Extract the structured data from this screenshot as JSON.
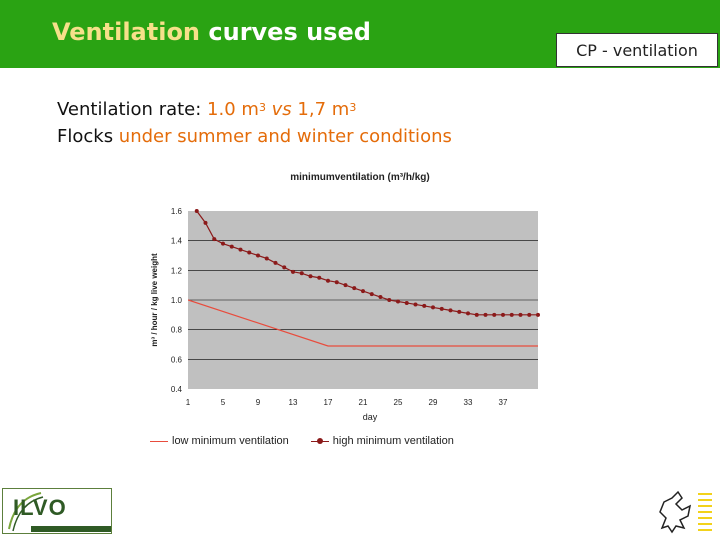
{
  "header": {
    "title_part1": "Ventilation",
    "title_part2": " curves used",
    "section": "CP - ventilation"
  },
  "body": {
    "line1_label": "Ventilation rate: ",
    "line1_value_a": "1.0 m",
    "line1_exp_a": "3",
    "line1_vs": " vs ",
    "line1_value_b": " 1,7 m",
    "line1_exp_b": "3",
    "line2_part1": "Flocks",
    "line2_part2": " under summer and winter conditions"
  },
  "logo": {
    "text": "ILVO"
  },
  "colors": {
    "header_green": "#2aa313",
    "title_yellow": "#f6e08a",
    "accent_orange": "#e46c0a",
    "plot_bg": "#c0c0c0",
    "low_series": "#e84c3d",
    "high_series": "#8b1a1a"
  },
  "chart_data": {
    "type": "line",
    "title": "minimumventilation (m³/h/kg)",
    "xlabel": "day",
    "ylabel": "m³ / hour / kg live weight",
    "ylim": [
      0.4,
      1.6
    ],
    "yticks": [
      "0.4",
      "0.6",
      "0.8",
      "1.0",
      "1.2",
      "1.4",
      "1.6"
    ],
    "xticks": [
      "1",
      "5",
      "9",
      "13",
      "17",
      "21",
      "25",
      "29",
      "33",
      "37"
    ],
    "xlim": [
      1,
      41
    ],
    "grid": true,
    "legend_position": "bottom",
    "series": [
      {
        "name": "low minimum ventilation",
        "x": [
          1,
          17,
          41
        ],
        "values": [
          1.0,
          0.69,
          0.69
        ],
        "markers": false
      },
      {
        "name": "high minimum ventilation",
        "x": [
          1,
          2,
          3,
          4,
          5,
          6,
          7,
          8,
          9,
          10,
          11,
          12,
          13,
          14,
          15,
          16,
          17,
          18,
          19,
          20,
          21,
          22,
          23,
          24,
          25,
          26,
          27,
          28,
          29,
          30,
          31,
          32,
          33,
          34,
          35,
          36,
          37,
          38,
          39,
          40,
          41
        ],
        "values": [
          1.72,
          1.6,
          1.52,
          1.41,
          1.38,
          1.36,
          1.34,
          1.32,
          1.3,
          1.28,
          1.25,
          1.22,
          1.19,
          1.18,
          1.16,
          1.15,
          1.13,
          1.12,
          1.1,
          1.08,
          1.06,
          1.04,
          1.02,
          1.0,
          0.99,
          0.98,
          0.97,
          0.96,
          0.95,
          0.94,
          0.93,
          0.92,
          0.91,
          0.9,
          0.9,
          0.9,
          0.9,
          0.9,
          0.9,
          0.9,
          0.9
        ],
        "markers": true
      }
    ]
  }
}
